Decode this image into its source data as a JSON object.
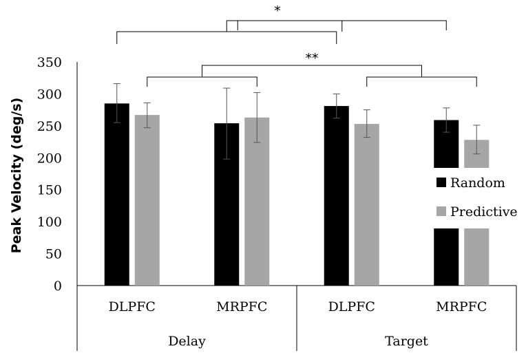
{
  "chart_data": {
    "type": "bar",
    "ylabel": "Peak Velocity (deg/s)",
    "ylim": [
      0,
      350
    ],
    "yticks": [
      0,
      50,
      100,
      150,
      200,
      250,
      300,
      350
    ],
    "groups": [
      "Delay",
      "Target"
    ],
    "categories": [
      "DLPFC",
      "MRPFC",
      "DLPFC",
      "MRPFC"
    ],
    "series": [
      {
        "name": "Random",
        "color": "#000000",
        "values": [
          285,
          254,
          281,
          259
        ],
        "err_low": [
          255,
          198,
          262,
          240
        ],
        "err_high": [
          316,
          309,
          300,
          278
        ]
      },
      {
        "name": "Predictive",
        "color": "#a6a6a6",
        "values": [
          267,
          263,
          253,
          228
        ],
        "err_low": [
          247,
          224,
          232,
          206
        ],
        "err_high": [
          286,
          302,
          275,
          251
        ]
      }
    ],
    "legend_position": "right",
    "annotations": [
      {
        "text": "*",
        "level": "top"
      },
      {
        "text": "**",
        "level": "middle"
      }
    ]
  }
}
